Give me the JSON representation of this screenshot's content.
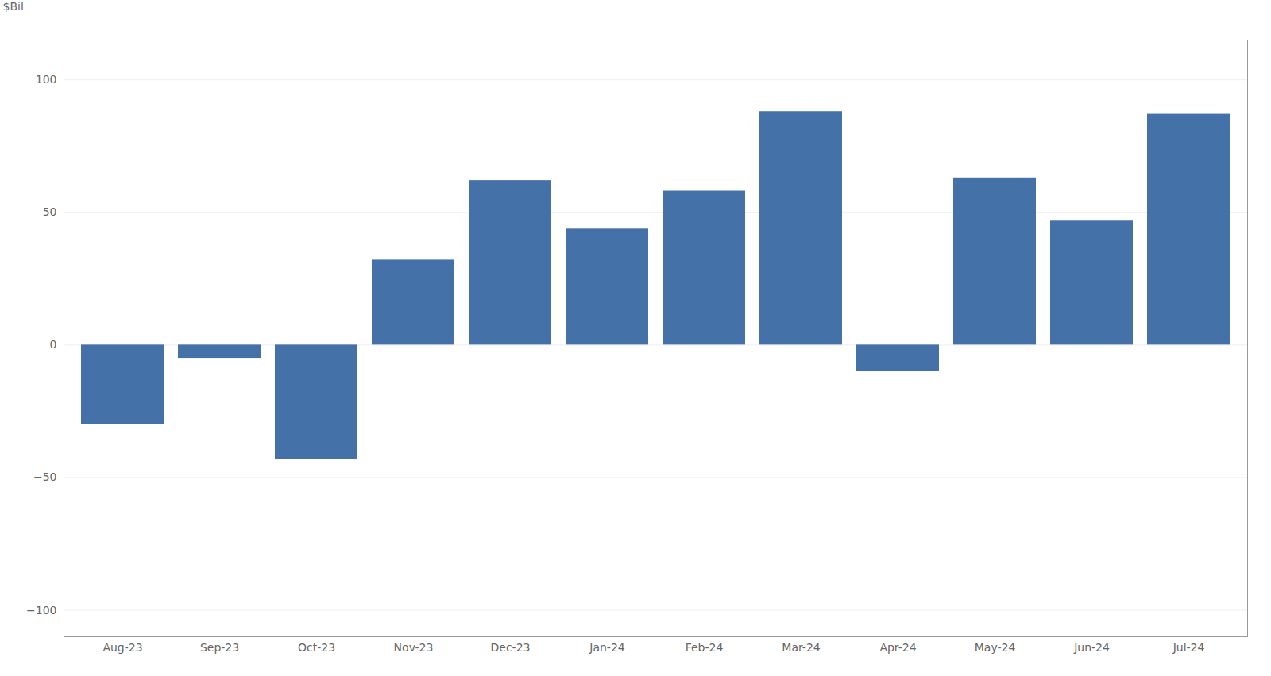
{
  "chart_data": {
    "type": "bar",
    "categories": [
      "Aug-23",
      "Sep-23",
      "Oct-23",
      "Nov-23",
      "Dec-23",
      "Jan-24",
      "Feb-24",
      "Mar-24",
      "Apr-24",
      "May-24",
      "Jun-24",
      "Jul-24"
    ],
    "values": [
      -30,
      -5,
      -43,
      32,
      62,
      44,
      58,
      88,
      -10,
      63,
      47,
      87
    ],
    "color": "#4472a8",
    "ylabel": "$Bil",
    "ylim": [
      -110,
      115
    ],
    "yticks": [
      {
        "value": -100,
        "label": "−100"
      },
      {
        "value": -50,
        "label": "−50"
      },
      0,
      50,
      100
    ],
    "grid": true
  }
}
